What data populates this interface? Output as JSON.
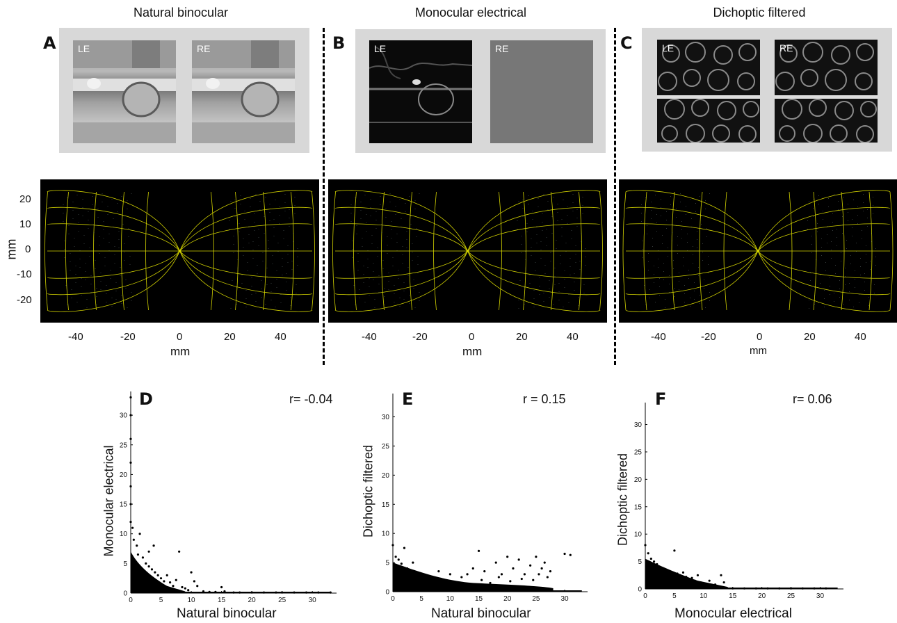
{
  "columns": [
    {
      "title": "Natural binocular",
      "panel": "A"
    },
    {
      "title": "Monocular electrical",
      "panel": "B"
    },
    {
      "title": "Dichoptic filtered",
      "panel": "C"
    }
  ],
  "eye_labels": {
    "left": "LE",
    "right": "RE"
  },
  "maps": {
    "y_ticks": [
      "20",
      "10",
      "0",
      "-10",
      "-20"
    ],
    "y_axis_label": "mm",
    "x_ticks": [
      "-40",
      "-20",
      "0",
      "20",
      "40"
    ],
    "x_axis_label": "mm",
    "grid_color": "#d4d400",
    "background": "#000000"
  },
  "scatter_panels": [
    {
      "panel": "D",
      "r_label": "r= -0.04",
      "xlabel": "Natural binocular",
      "ylabel": "Monocular electrical"
    },
    {
      "panel": "E",
      "r_label": "r = 0.15",
      "xlabel": "Natural binocular",
      "ylabel": "Dichoptic filtered"
    },
    {
      "panel": "F",
      "r_label": "r= 0.06",
      "xlabel": "Monocular electrical",
      "ylabel": "Dichoptic filtered"
    }
  ],
  "chart_data": [
    {
      "type": "scatter",
      "panel": "D",
      "title": "",
      "xlabel": "Natural binocular",
      "ylabel": "Monocular electrical",
      "xlim": [
        0,
        34
      ],
      "ylim": [
        0,
        34
      ],
      "xticks": [
        0,
        5,
        10,
        15,
        20,
        25,
        30
      ],
      "yticks": [
        0,
        5,
        10,
        15,
        20,
        25,
        30
      ],
      "annotation": "r= -0.04",
      "points": [
        [
          0,
          33
        ],
        [
          0,
          30
        ],
        [
          0,
          26
        ],
        [
          0,
          22
        ],
        [
          0,
          18
        ],
        [
          0,
          15
        ],
        [
          0,
          12
        ],
        [
          0.3,
          11
        ],
        [
          0.5,
          9
        ],
        [
          1,
          8
        ],
        [
          1.2,
          6.5
        ],
        [
          1.5,
          10
        ],
        [
          2,
          6
        ],
        [
          2.5,
          5
        ],
        [
          3,
          4.5
        ],
        [
          3,
          7
        ],
        [
          3.5,
          4
        ],
        [
          3.8,
          8
        ],
        [
          4,
          3.5
        ],
        [
          4.5,
          3
        ],
        [
          5,
          2.5
        ],
        [
          5.5,
          2
        ],
        [
          6,
          3
        ],
        [
          6.5,
          1.8
        ],
        [
          7,
          1.2
        ],
        [
          7.5,
          2.2
        ],
        [
          8,
          7
        ],
        [
          8.5,
          1
        ],
        [
          9,
          0.8
        ],
        [
          9.5,
          0.5
        ],
        [
          10,
          3.5
        ],
        [
          10.5,
          2
        ],
        [
          11,
          1.2
        ],
        [
          12,
          0.3
        ],
        [
          13,
          0.2
        ],
        [
          14,
          0.2
        ],
        [
          15,
          1
        ],
        [
          15.5,
          0.3
        ],
        [
          17,
          0.1
        ],
        [
          18,
          0.1
        ],
        [
          20,
          0.1
        ],
        [
          22,
          0.1
        ],
        [
          24,
          0.1
        ],
        [
          25,
          0.1
        ],
        [
          27,
          0.1
        ],
        [
          29,
          0.1
        ],
        [
          31,
          0.1
        ],
        [
          33,
          0.1
        ]
      ]
    },
    {
      "type": "scatter",
      "panel": "E",
      "title": "",
      "xlabel": "Natural binocular",
      "ylabel": "Dichoptic filtered",
      "xlim": [
        0,
        34
      ],
      "ylim": [
        0,
        34
      ],
      "xticks": [
        0,
        5,
        10,
        15,
        20,
        25,
        30
      ],
      "yticks": [
        0,
        5,
        10,
        15,
        20,
        25,
        30
      ],
      "annotation": "r = 0.15",
      "points": [
        [
          0,
          8
        ],
        [
          0.5,
          6
        ],
        [
          1,
          5.5
        ],
        [
          1.5,
          4.8
        ],
        [
          2,
          7.5
        ],
        [
          2.5,
          4
        ],
        [
          3,
          3.5
        ],
        [
          3.5,
          5
        ],
        [
          4,
          2.8
        ],
        [
          5,
          3
        ],
        [
          6,
          2.5
        ],
        [
          7,
          2
        ],
        [
          8,
          3.5
        ],
        [
          9,
          2
        ],
        [
          10,
          3
        ],
        [
          11,
          1.5
        ],
        [
          12,
          2.5
        ],
        [
          13,
          3
        ],
        [
          14,
          4
        ],
        [
          15,
          7
        ],
        [
          15.5,
          2
        ],
        [
          16,
          3.5
        ],
        [
          17,
          1.5
        ],
        [
          18,
          5
        ],
        [
          18.5,
          2.5
        ],
        [
          19,
          3
        ],
        [
          20,
          6
        ],
        [
          20.5,
          1.8
        ],
        [
          21,
          4
        ],
        [
          22,
          5.5
        ],
        [
          22.5,
          2.2
        ],
        [
          23,
          3
        ],
        [
          24,
          4.5
        ],
        [
          24.5,
          2
        ],
        [
          25,
          6
        ],
        [
          25.5,
          3
        ],
        [
          26,
          4
        ],
        [
          26.5,
          5
        ],
        [
          27,
          2.5
        ],
        [
          27.5,
          3.5
        ],
        [
          30,
          6.5
        ],
        [
          31,
          6.3
        ]
      ]
    },
    {
      "type": "scatter",
      "panel": "F",
      "title": "",
      "xlabel": "Monocular electrical",
      "ylabel": "Dichoptic filtered",
      "xlim": [
        0,
        34
      ],
      "ylim": [
        0,
        34
      ],
      "xticks": [
        0,
        5,
        10,
        15,
        20,
        25,
        30
      ],
      "yticks": [
        0,
        5,
        10,
        15,
        20,
        25,
        30
      ],
      "annotation": "r= 0.06",
      "points": [
        [
          0,
          8
        ],
        [
          0.5,
          6.5
        ],
        [
          1,
          5.5
        ],
        [
          1.5,
          5
        ],
        [
          2,
          4.5
        ],
        [
          2.5,
          4
        ],
        [
          3,
          3.8
        ],
        [
          3.5,
          3.5
        ],
        [
          4,
          3.2
        ],
        [
          4.5,
          3
        ],
        [
          5,
          7
        ],
        [
          5.5,
          2.8
        ],
        [
          6,
          2.5
        ],
        [
          6.5,
          3
        ],
        [
          7,
          2.2
        ],
        [
          7.5,
          1.8
        ],
        [
          8,
          2
        ],
        [
          8.5,
          1.5
        ],
        [
          9,
          2.5
        ],
        [
          9.5,
          1.2
        ],
        [
          10,
          1
        ],
        [
          11,
          1.5
        ],
        [
          12,
          0.8
        ],
        [
          13,
          2.5
        ],
        [
          13.5,
          1.2
        ],
        [
          14,
          0.2
        ],
        [
          15,
          0.1
        ],
        [
          17,
          0.1
        ],
        [
          19,
          0.1
        ],
        [
          21,
          0.1
        ],
        [
          23,
          0.1
        ],
        [
          25,
          0.1
        ],
        [
          27,
          0.1
        ],
        [
          29,
          0.1
        ],
        [
          31,
          0.1
        ]
      ]
    }
  ]
}
